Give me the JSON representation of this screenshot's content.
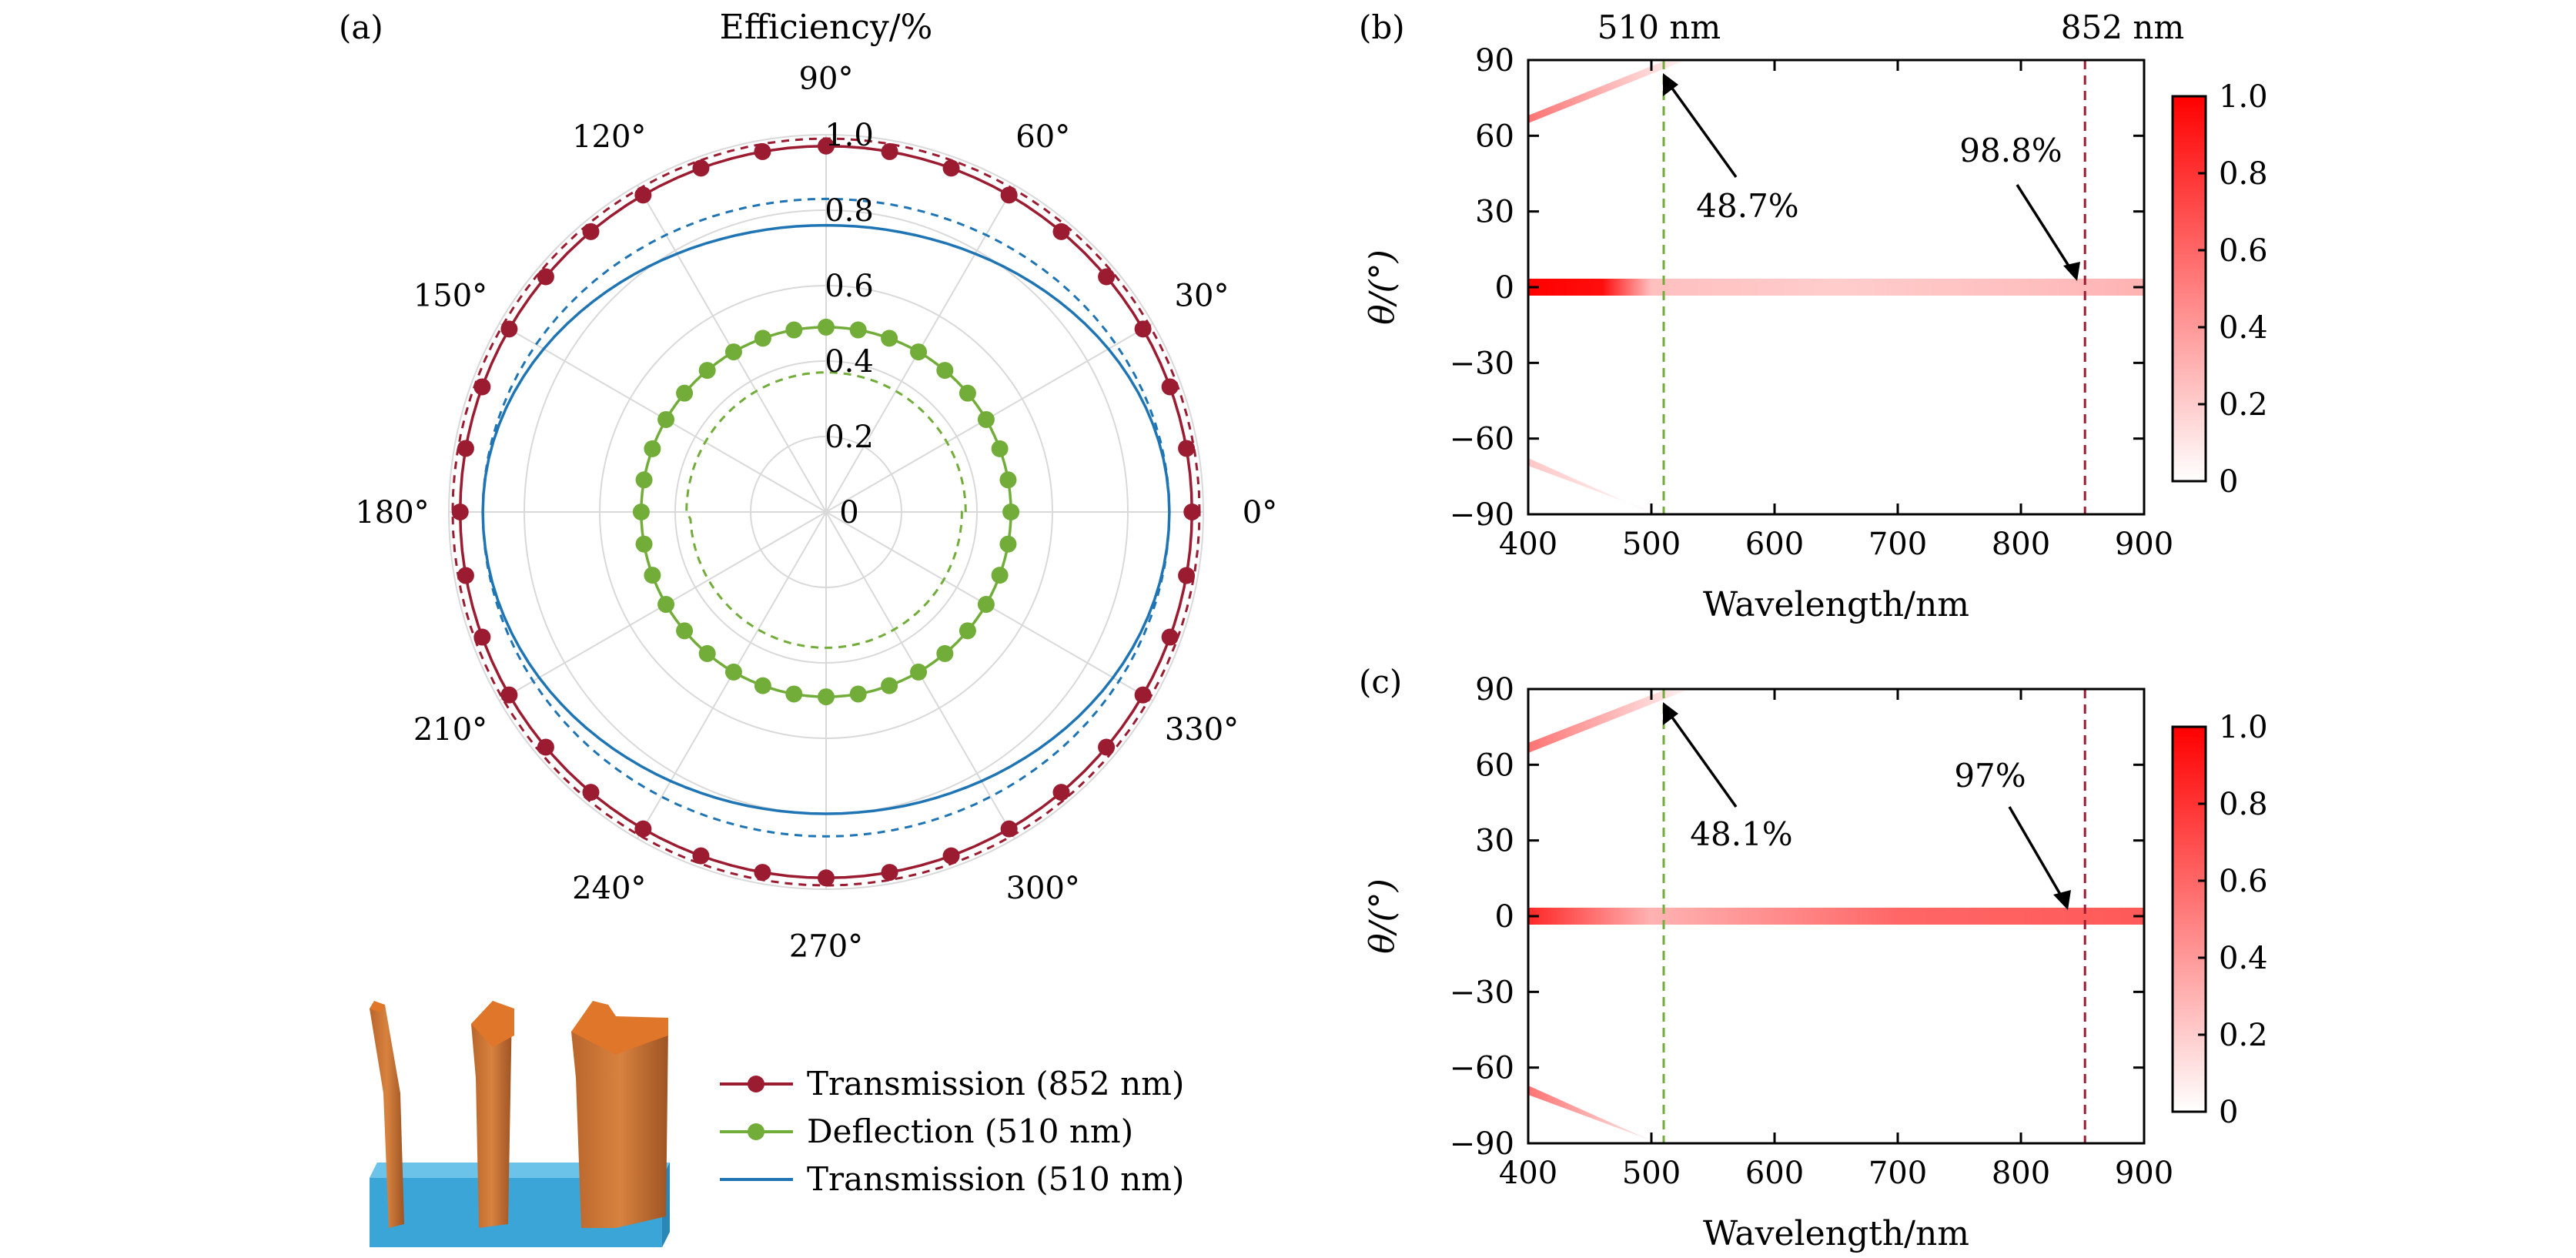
{
  "colors": {
    "transmission852": "#9b1b30",
    "deflection510": "#72ad3a",
    "transmission510": "#1f74b4",
    "heat": "#ff0000",
    "orange": "#e0762a",
    "substrate": "#3aa5d6"
  },
  "panel_labels": {
    "a": "(a)",
    "b": "(b)",
    "c": "(c)"
  },
  "chart_data": [
    {
      "id": "a",
      "type": "polar",
      "title": "Efficiency/%",
      "radial_ticks": [
        "0",
        "0.2",
        "0.4",
        "0.6",
        "0.8",
        "1.0"
      ],
      "radial_values": [
        0,
        0.2,
        0.4,
        0.6,
        0.8,
        1.0
      ],
      "angle_labels": [
        "0°",
        "30°",
        "60°",
        "90°",
        "120°",
        "150°",
        "180°",
        "210°",
        "240°",
        "270°",
        "300°",
        "330°"
      ],
      "angles_deg": [
        0,
        30,
        60,
        90,
        120,
        150,
        180,
        210,
        240,
        270,
        300,
        330
      ],
      "series": [
        {
          "name": "Transmission (852 nm)",
          "radius": 0.97,
          "marker": "circle",
          "dashed_radius": 0.99
        },
        {
          "name": "Deflection (510 nm)",
          "radius": 0.49,
          "marker": "circle",
          "dashed_radius_top": 0.37,
          "dashed_radius_bottom": 0.36
        },
        {
          "name": "Transmission (510 nm)",
          "radius_top": 0.76,
          "radius_side": 0.91,
          "radius_bottom": 0.8,
          "marker": "none",
          "dashed_radius_top": 0.83,
          "dashed_radius_bottom": 0.86
        }
      ],
      "legend": [
        "Transmission (852 nm)",
        "Deflection (510 nm)",
        "Transmission (510 nm)"
      ]
    },
    {
      "id": "b",
      "type": "heatmap",
      "xlabel": "Wavelength/nm",
      "ylabel": "θ/(°)",
      "xlim": [
        400,
        900
      ],
      "ylim": [
        -90,
        90
      ],
      "xticks": [
        "400",
        "500",
        "600",
        "700",
        "800",
        "900"
      ],
      "xtick_values": [
        400,
        500,
        600,
        700,
        800,
        900
      ],
      "yticks": [
        "90",
        "60",
        "30",
        "0",
        "−30",
        "−60",
        "−90"
      ],
      "ytick_values": [
        90,
        60,
        30,
        0,
        -30,
        -60,
        -90
      ],
      "vlines": [
        {
          "x": 510,
          "label": "510 nm",
          "color": "#72ad3a"
        },
        {
          "x": 852,
          "label": "852 nm",
          "color": "#9b1b30"
        }
      ],
      "annotations": [
        {
          "text": "48.7%",
          "x": 510,
          "y": 88
        },
        {
          "text": "98.8%",
          "x": 852,
          "y": 0
        }
      ],
      "colorbar_ticks": [
        "1.0",
        "0.8",
        "0.6",
        "0.4",
        "0.2",
        "0"
      ],
      "colorbar_values": [
        1.0,
        0.8,
        0.6,
        0.4,
        0.2,
        0
      ]
    },
    {
      "id": "c",
      "type": "heatmap",
      "xlabel": "Wavelength/nm",
      "ylabel": "θ/(°)",
      "xlim": [
        400,
        900
      ],
      "ylim": [
        -90,
        90
      ],
      "xticks": [
        "400",
        "500",
        "600",
        "700",
        "800",
        "900"
      ],
      "xtick_values": [
        400,
        500,
        600,
        700,
        800,
        900
      ],
      "yticks": [
        "90",
        "60",
        "30",
        "0",
        "−30",
        "−60",
        "−90"
      ],
      "ytick_values": [
        90,
        60,
        30,
        0,
        -30,
        -60,
        -90
      ],
      "vlines": [
        {
          "x": 510,
          "color": "#72ad3a"
        },
        {
          "x": 852,
          "color": "#9b1b30"
        }
      ],
      "annotations": [
        {
          "text": "48.1%",
          "x": 510,
          "y": 88
        },
        {
          "text": "97%",
          "x": 852,
          "y": 0
        }
      ],
      "colorbar_ticks": [
        "1.0",
        "0.8",
        "0.6",
        "0.4",
        "0.2",
        "0"
      ],
      "colorbar_values": [
        1.0,
        0.8,
        0.6,
        0.4,
        0.2,
        0
      ]
    }
  ]
}
